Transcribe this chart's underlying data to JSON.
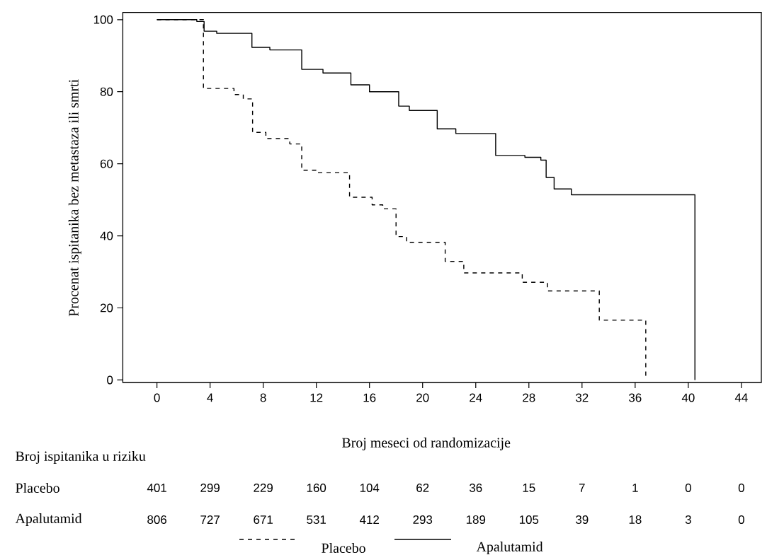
{
  "chart_data": {
    "type": "step",
    "xlabel": "Broj meseci od randomizacije",
    "ylabel": "Procenat ispitanika bez metastaza ili smrti",
    "xlim": [
      -2.57,
      45.5
    ],
    "ylim": [
      -0.7,
      102.0
    ],
    "xticks": [
      0,
      4,
      8,
      12,
      16,
      20,
      24,
      28,
      32,
      36,
      40,
      44
    ],
    "yticks": [
      0,
      20,
      40,
      60,
      80,
      100
    ],
    "grid": false,
    "marker": "none",
    "legend": "bottom",
    "series": [
      {
        "name": "Placebo",
        "color": "#000000",
        "line_style": "dashed",
        "x": [
          0,
          3.5,
          5.8,
          6.5,
          7.2,
          8.2,
          10.0,
          10.9,
          12.0,
          14.5,
          16.2,
          17.0,
          18.0,
          18.8,
          21.7,
          23.1,
          27.5,
          29.4,
          33.3,
          36.8
        ],
        "values": [
          100,
          80.9,
          79.2,
          78.0,
          68.7,
          67.0,
          65.5,
          58.2,
          57.5,
          50.7,
          48.6,
          47.5,
          39.8,
          38.2,
          32.9,
          29.7,
          27.1,
          24.7,
          16.6,
          0
        ]
      },
      {
        "name": "Apalutamid",
        "color": "#000000",
        "line_style": "solid",
        "x": [
          0,
          3.0,
          3.55,
          4.5,
          7.15,
          8.5,
          10.9,
          12.5,
          14.6,
          16.0,
          18.2,
          19.0,
          21.1,
          22.5,
          25.5,
          27.7,
          28.9,
          29.3,
          29.9,
          31.2,
          40.5
        ],
        "values": [
          100,
          99.5,
          96.8,
          96.2,
          92.3,
          91.6,
          86.2,
          85.2,
          81.9,
          80.0,
          76.0,
          74.8,
          69.7,
          68.4,
          62.3,
          61.8,
          61.0,
          56.2,
          53.0,
          51.4,
          0
        ]
      }
    ],
    "annotations": [
      "Broj ispitanika u riziku",
      "401",
      "299",
      "229",
      "160",
      "104",
      "62",
      "36",
      "15",
      "7",
      "1",
      "0",
      "0",
      "806",
      "727",
      "671",
      "531",
      "412",
      "293",
      "189",
      "105",
      "39",
      "18",
      "3",
      "0"
    ]
  }
}
